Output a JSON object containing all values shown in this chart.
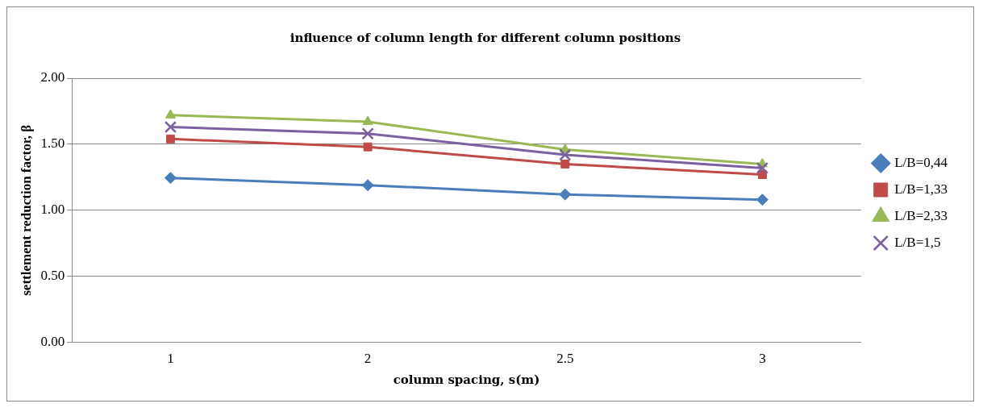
{
  "chart_data": {
    "type": "line",
    "title": "influence of column length for different column positions",
    "xlabel": "column spacing, s(m)",
    "ylabel": "settlement reduction factor, β",
    "categories": [
      "1",
      "2",
      "2.5",
      "3"
    ],
    "series": [
      {
        "name": "L/B=0,44",
        "color": "#4a7ebb",
        "marker": "diamond",
        "values": [
          1.245,
          1.19,
          1.12,
          1.08
        ]
      },
      {
        "name": "L/B=1,33",
        "color": "#be4b48",
        "marker": "square",
        "values": [
          1.54,
          1.48,
          1.35,
          1.27
        ]
      },
      {
        "name": "L/B=2,33",
        "color": "#98b954",
        "marker": "triangle",
        "values": [
          1.72,
          1.67,
          1.46,
          1.35
        ]
      },
      {
        "name": "L/B=1,5",
        "color": "#7d60a0",
        "marker": "cross",
        "values": [
          1.63,
          1.58,
          1.42,
          1.32
        ]
      }
    ],
    "ylim": [
      0,
      2
    ],
    "yticks": [
      {
        "value": 0,
        "label": "0.00"
      },
      {
        "value": 0.5,
        "label": "0.50"
      },
      {
        "value": 1,
        "label": "1.00"
      },
      {
        "value": 1.5,
        "label": "1.50"
      },
      {
        "value": 2,
        "label": "2.00"
      }
    ],
    "grid": "y",
    "legend": "right"
  }
}
